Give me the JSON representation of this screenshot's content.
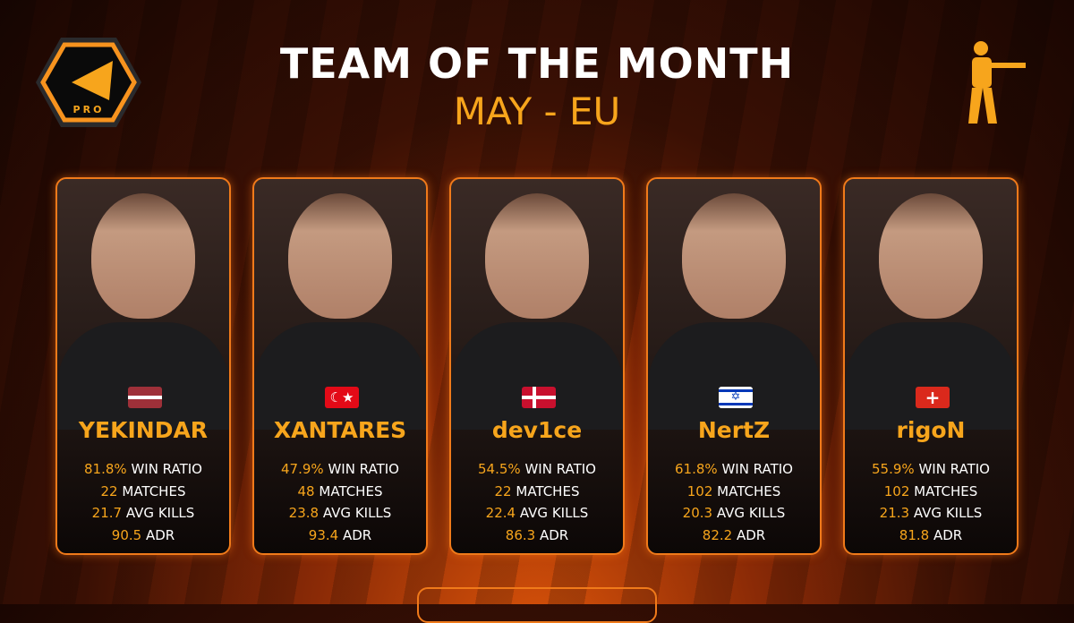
{
  "header": {
    "title": "TEAM OF THE MONTH",
    "subtitle": "MAY - EU",
    "logo_text": "PRO"
  },
  "colors": {
    "accent": "#f7a51c",
    "border": "#f07a1a"
  },
  "labels": {
    "win": "WIN RATIO",
    "matches": "MATCHES",
    "kills": "AVG KILLS",
    "adr": "ADR"
  },
  "players": [
    {
      "name": "YEKINDAR",
      "country": "Latvia",
      "win": "81.8%",
      "matches": "22",
      "kills": "21.7",
      "adr": "90.5"
    },
    {
      "name": "XANTARES",
      "country": "Turkey",
      "win": "47.9%",
      "matches": "48",
      "kills": "23.8",
      "adr": "93.4"
    },
    {
      "name": "dev1ce",
      "country": "Denmark",
      "win": "54.5%",
      "matches": "22",
      "kills": "22.4",
      "adr": "86.3"
    },
    {
      "name": "NertZ",
      "country": "Israel",
      "win": "61.8%",
      "matches": "102",
      "kills": "20.3",
      "adr": "82.2"
    },
    {
      "name": "rigoN",
      "country": "Switzerland",
      "win": "55.9%",
      "matches": "102",
      "kills": "21.3",
      "adr": "81.8"
    }
  ]
}
